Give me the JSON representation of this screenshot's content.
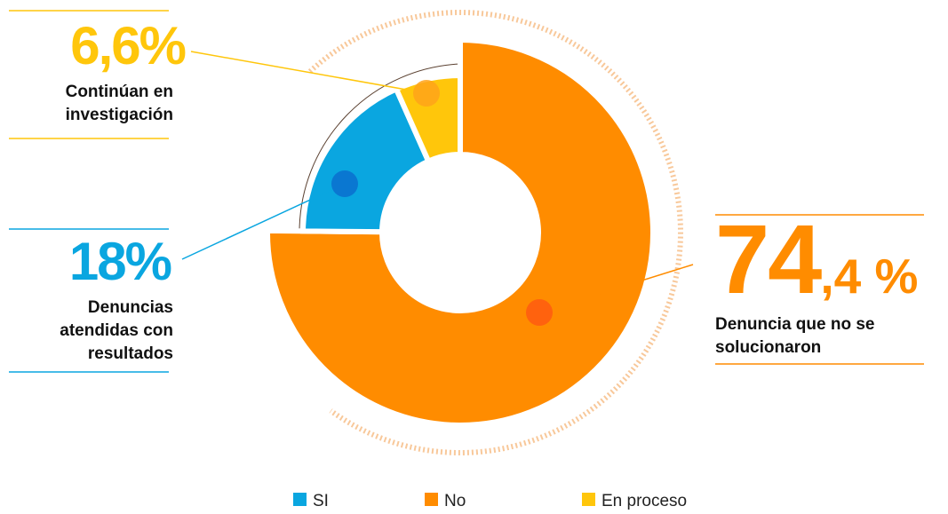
{
  "chart_data": {
    "type": "donut",
    "categories": [
      "SI",
      "No",
      "En proceso"
    ],
    "values": [
      18,
      74.4,
      6.6
    ],
    "value_labels": [
      "18%",
      "74,4 %",
      "6,6%"
    ],
    "colors": [
      "#0aa6e0",
      "#ff8c00",
      "#ffc60b"
    ],
    "descriptions": [
      [
        "Denuncias",
        "atendidas con",
        "resultados"
      ],
      [
        "Denuncia que no se",
        "solucionaron"
      ],
      [
        "Continúan en",
        "investigación"
      ]
    ],
    "legend": "bottom"
  }
}
